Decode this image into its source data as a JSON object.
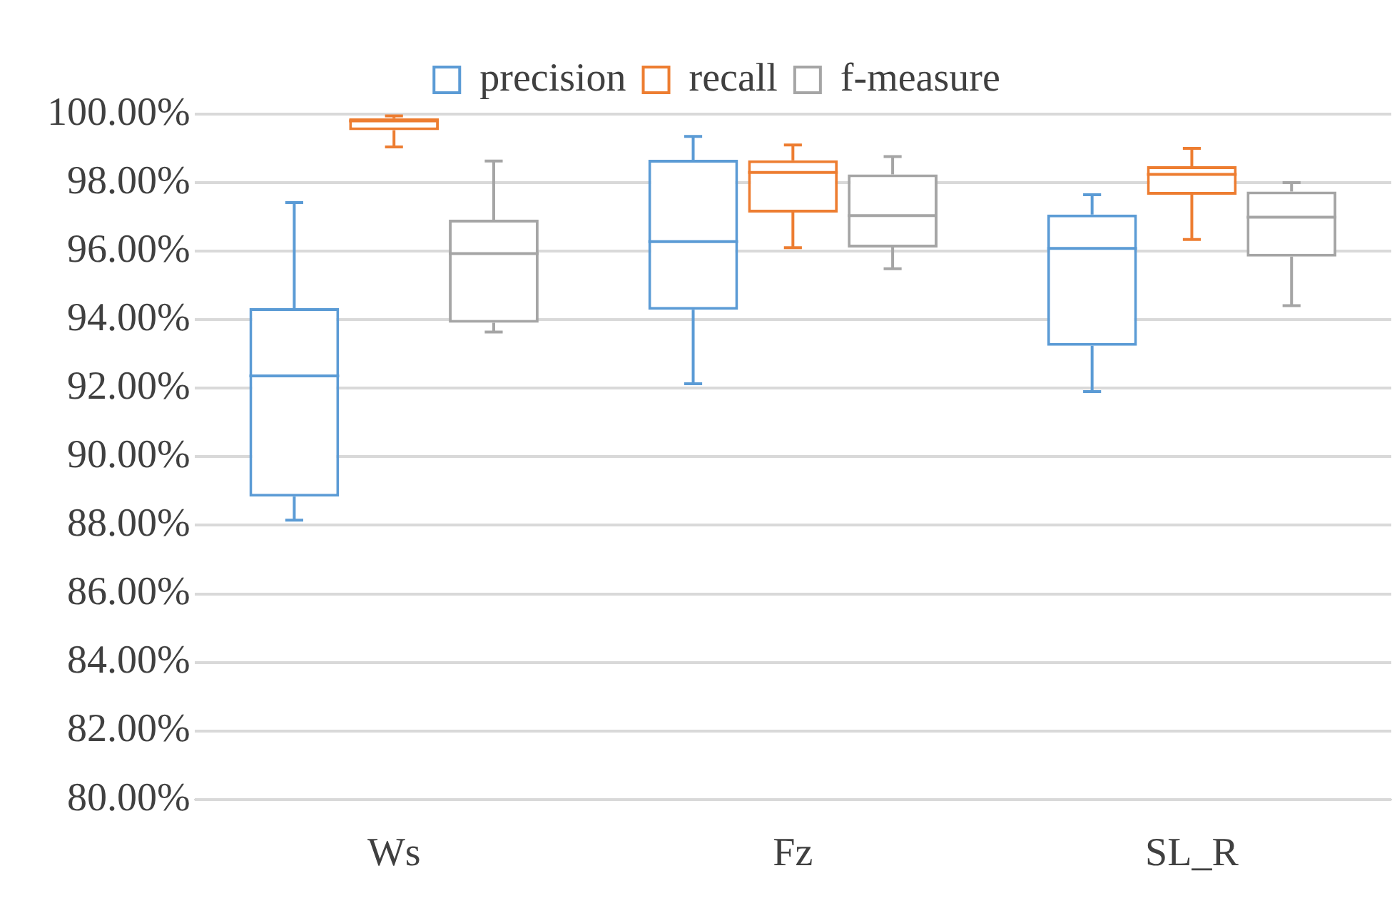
{
  "chart_data": {
    "type": "box",
    "categories": [
      "Ws",
      "Fz",
      "SL_R"
    ],
    "series": [
      {
        "name": "precision",
        "color": "#5b9bd5",
        "boxes": [
          {
            "low": 88.15,
            "q1": 88.84,
            "median": 92.36,
            "q3": 94.34,
            "high": 97.42
          },
          {
            "low": 92.13,
            "q1": 94.29,
            "median": 96.28,
            "q3": 98.67,
            "high": 99.35
          },
          {
            "low": 91.9,
            "q1": 93.24,
            "median": 96.08,
            "q3": 97.07,
            "high": 97.65
          }
        ]
      },
      {
        "name": "recall",
        "color": "#ed7d31",
        "boxes": [
          {
            "low": 99.04,
            "q1": 99.53,
            "median": 99.8,
            "q3": 99.88,
            "high": 99.95
          },
          {
            "low": 96.1,
            "q1": 97.13,
            "median": 98.3,
            "q3": 98.65,
            "high": 99.1
          },
          {
            "low": 96.34,
            "q1": 97.65,
            "median": 98.24,
            "q3": 98.48,
            "high": 99.0
          }
        ]
      },
      {
        "name": "f-measure",
        "color": "#a5a5a5",
        "boxes": [
          {
            "low": 93.64,
            "q1": 93.91,
            "median": 95.93,
            "q3": 96.92,
            "high": 98.63
          },
          {
            "low": 95.49,
            "q1": 96.11,
            "median": 97.04,
            "q3": 98.24,
            "high": 98.76
          },
          {
            "low": 94.41,
            "q1": 95.84,
            "median": 96.99,
            "q3": 97.74,
            "high": 98.0
          }
        ]
      }
    ],
    "ylim": [
      80,
      100
    ],
    "yticks": [
      {
        "value": 80,
        "label": "80.00%"
      },
      {
        "value": 82,
        "label": "82.00%"
      },
      {
        "value": 84,
        "label": "84.00%"
      },
      {
        "value": 86,
        "label": "86.00%"
      },
      {
        "value": 88,
        "label": "88.00%"
      },
      {
        "value": 90,
        "label": "90.00%"
      },
      {
        "value": 92,
        "label": "92.00%"
      },
      {
        "value": 94,
        "label": "94.00%"
      },
      {
        "value": 96,
        "label": "96.00%"
      },
      {
        "value": 98,
        "label": "98.00%"
      },
      {
        "value": 100,
        "label": "100.00%"
      }
    ],
    "grid": "y",
    "legend": "top"
  }
}
